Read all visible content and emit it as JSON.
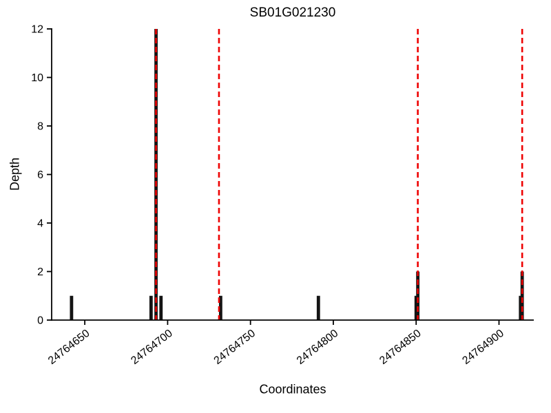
{
  "chart_data": {
    "type": "bar",
    "title": "SB01G021230",
    "xlabel": "Coordinates",
    "ylabel": "Depth",
    "xlim": [
      24764630,
      24764921
    ],
    "ylim": [
      0,
      12
    ],
    "xticks": [
      24764650,
      24764700,
      24764750,
      24764800,
      24764850,
      24764900
    ],
    "yticks": [
      0,
      2,
      4,
      6,
      8,
      10,
      12
    ],
    "grid": false,
    "legend_position": "none",
    "bar_color": "#141414",
    "bar_width_units": 2,
    "vline_color": "#ee0000",
    "vline_style": "dashed",
    "bars": [
      {
        "x": 24764642,
        "depth": 1
      },
      {
        "x": 24764690,
        "depth": 1
      },
      {
        "x": 24764693,
        "depth": 12
      },
      {
        "x": 24764696,
        "depth": 1
      },
      {
        "x": 24764732,
        "depth": 1
      },
      {
        "x": 24764791,
        "depth": 1
      },
      {
        "x": 24764850,
        "depth": 1
      },
      {
        "x": 24764851,
        "depth": 2
      },
      {
        "x": 24764913,
        "depth": 1
      },
      {
        "x": 24764914,
        "depth": 2
      }
    ],
    "vlines": [
      24764693,
      24764731,
      24764851,
      24764914
    ]
  }
}
